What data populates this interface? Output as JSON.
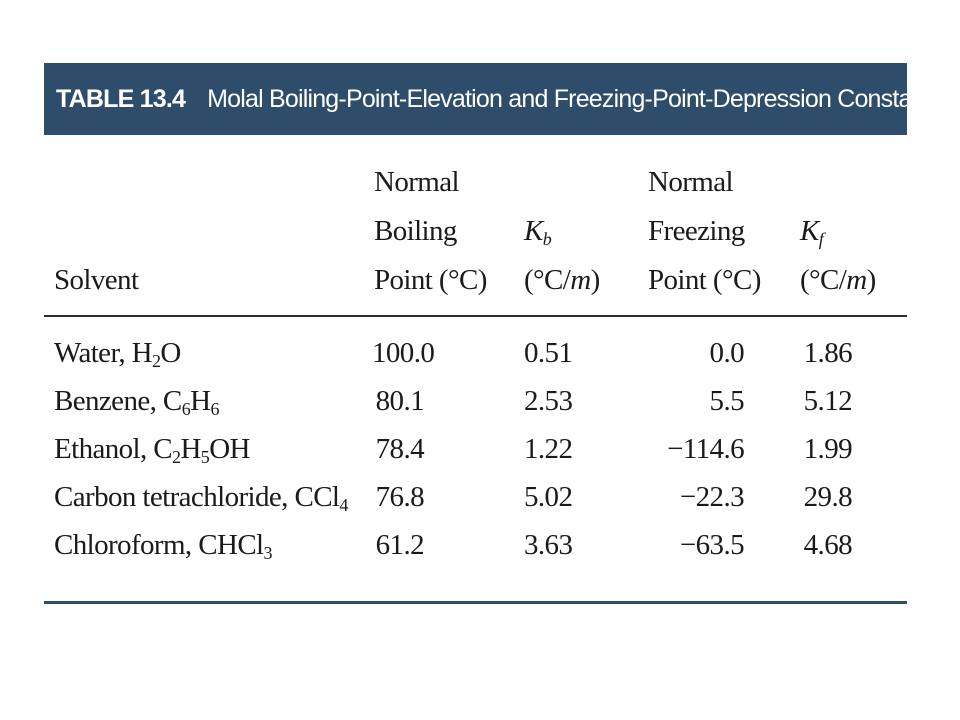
{
  "table": {
    "number": "TABLE 13.4",
    "title": "Molal Boiling-Point-Elevation and Freezing-Point-Depression Constants"
  },
  "headers": {
    "solvent": "Solvent",
    "boiling_point": [
      "Normal",
      "Boiling",
      "Point (°C)"
    ],
    "kb": {
      "symbol": "K",
      "subscript": "b",
      "unit_open": "(°C/",
      "unit_var": "m",
      "unit_close": ")"
    },
    "freezing_point": [
      "Normal",
      "Freezing",
      "Point (°C)"
    ],
    "kf": {
      "symbol": "K",
      "subscript": "f",
      "unit_open": "(°C/",
      "unit_var": "m",
      "unit_close": ")"
    }
  },
  "rows": [
    {
      "solvent_parts": [
        {
          "t": "Water, H"
        },
        {
          "s": "2"
        },
        {
          "t": "O"
        }
      ],
      "boiling_point": "100.0",
      "kb": "0.51",
      "freezing_point": "0.0",
      "kf": "1.86"
    },
    {
      "solvent_parts": [
        {
          "t": "Benzene, C"
        },
        {
          "s": "6"
        },
        {
          "t": "H"
        },
        {
          "s": "6"
        }
      ],
      "boiling_point": "80.1",
      "kb": "2.53",
      "freezing_point": "5.5",
      "kf": "5.12"
    },
    {
      "solvent_parts": [
        {
          "t": "Ethanol, C"
        },
        {
          "s": "2"
        },
        {
          "t": "H"
        },
        {
          "s": "5"
        },
        {
          "t": "OH"
        }
      ],
      "boiling_point": "78.4",
      "kb": "1.22",
      "freezing_point": "−114.6",
      "kf": "1.99"
    },
    {
      "solvent_parts": [
        {
          "t": "Carbon tetrachloride, CCl"
        },
        {
          "s": "4"
        }
      ],
      "boiling_point": "76.8",
      "kb": "5.02",
      "freezing_point": "−22.3",
      "kf": "29.8"
    },
    {
      "solvent_parts": [
        {
          "t": "Chloroform, CHCl"
        },
        {
          "s": "3"
        }
      ],
      "boiling_point": "61.2",
      "kb": "3.63",
      "freezing_point": "−63.5",
      "kf": "4.68"
    }
  ],
  "colors": {
    "title_bar": "#2e4d6b",
    "title_text": "#ffffff",
    "body_text": "#1b1b1b"
  }
}
